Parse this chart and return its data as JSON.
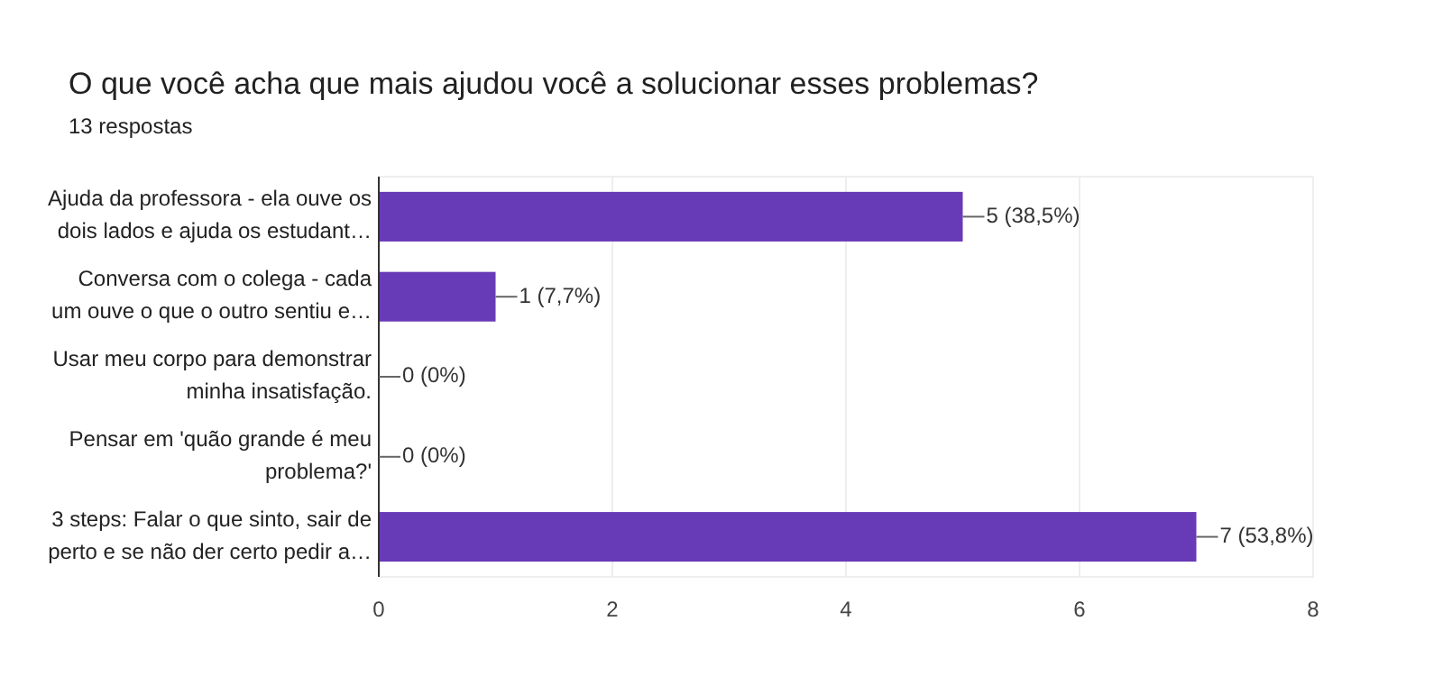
{
  "chart_data": {
    "type": "bar",
    "orientation": "horizontal",
    "title": "O que você acha que mais ajudou você a solucionar esses problemas?",
    "subtitle": "13 respostas",
    "categories": [
      "Ajuda da professora - ela ouve os\ndois lados e ajuda os estudant…",
      "Conversa com o colega - cada\num ouve o que o outro sentiu e…",
      "Usar meu corpo para demonstrar\nminha insatisfação.",
      "Pensar em 'quão grande é meu\nproblema?'",
      "3 steps: Falar o que sinto, sair de\nperto e se não der certo pedir a…"
    ],
    "values": [
      5,
      1,
      0,
      0,
      7
    ],
    "value_labels": [
      "5 (38,5%)",
      "1 (7,7%)",
      "0 (0%)",
      "0 (0%)",
      "7 (53,8%)"
    ],
    "color": "#673ab7",
    "xlim": [
      0,
      8
    ],
    "xticks": [
      0,
      2,
      4,
      6,
      8
    ],
    "grid": "x"
  }
}
